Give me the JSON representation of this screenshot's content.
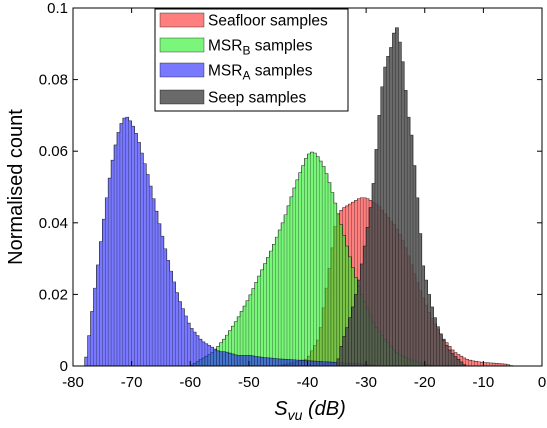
{
  "chart_data": {
    "type": "histogram",
    "xlabel": {
      "main": "S",
      "sub": "vu",
      "units": " (dB)"
    },
    "ylabel": "Normalised count",
    "xlim": [
      -80,
      0
    ],
    "ylim": [
      0,
      0.1
    ],
    "xticks": [
      "-80",
      "-70",
      "-60",
      "-50",
      "-40",
      "-30",
      "-20",
      "-10",
      "0"
    ],
    "yticks": [
      "0",
      "0.02",
      "0.04",
      "0.06",
      "0.08",
      "0.1"
    ],
    "grid": false,
    "legend_position": "top-center",
    "bin_width_db": 0.5,
    "series": [
      {
        "name": "Seafloor samples",
        "name_parts": [
          {
            "t": "Seafloor samples"
          }
        ],
        "color": "#ff2a2a",
        "fill_opacity": 0.6,
        "points": [
          [
            -45,
            0.0
          ],
          [
            -40,
            0.002
          ],
          [
            -38,
            0.008
          ],
          [
            -36,
            0.03
          ],
          [
            -35,
            0.042
          ],
          [
            -34,
            0.044
          ],
          [
            -33,
            0.045
          ],
          [
            -32,
            0.046
          ],
          [
            -31,
            0.047
          ],
          [
            -30,
            0.047
          ],
          [
            -29,
            0.046
          ],
          [
            -28,
            0.045
          ],
          [
            -27,
            0.043
          ],
          [
            -26,
            0.041
          ],
          [
            -25,
            0.039
          ],
          [
            -24,
            0.036
          ],
          [
            -23,
            0.032
          ],
          [
            -22,
            0.027
          ],
          [
            -21,
            0.022
          ],
          [
            -20,
            0.018
          ],
          [
            -19,
            0.014
          ],
          [
            -18,
            0.011
          ],
          [
            -17,
            0.008
          ],
          [
            -16,
            0.006
          ],
          [
            -15,
            0.004
          ],
          [
            -14,
            0.003
          ],
          [
            -13,
            0.002
          ],
          [
            -12,
            0.0015
          ],
          [
            -10,
            0.001
          ],
          [
            -8,
            0.0008
          ],
          [
            -6,
            0.0005
          ],
          [
            -5,
            0.0
          ]
        ]
      },
      {
        "name": "MSR_B samples",
        "name_parts": [
          {
            "t": "MSR"
          },
          {
            "t": "B",
            "sub": true
          },
          {
            "t": " samples"
          }
        ],
        "color": "#22f022",
        "fill_opacity": 0.6,
        "points": [
          [
            -60,
            0.0
          ],
          [
            -58,
            0.002
          ],
          [
            -56,
            0.004
          ],
          [
            -54,
            0.008
          ],
          [
            -52,
            0.013
          ],
          [
            -50,
            0.019
          ],
          [
            -48,
            0.026
          ],
          [
            -46,
            0.033
          ],
          [
            -44,
            0.041
          ],
          [
            -43,
            0.046
          ],
          [
            -42,
            0.051
          ],
          [
            -41,
            0.055
          ],
          [
            -40,
            0.059
          ],
          [
            -39,
            0.06
          ],
          [
            -38,
            0.058
          ],
          [
            -37,
            0.055
          ],
          [
            -36,
            0.05
          ],
          [
            -35,
            0.044
          ],
          [
            -34,
            0.038
          ],
          [
            -33,
            0.032
          ],
          [
            -32,
            0.026
          ],
          [
            -31,
            0.021
          ],
          [
            -30,
            0.017
          ],
          [
            -29,
            0.013
          ],
          [
            -28,
            0.01
          ],
          [
            -27,
            0.008
          ],
          [
            -26,
            0.006
          ],
          [
            -25,
            0.004
          ],
          [
            -24,
            0.003
          ],
          [
            -22,
            0.0015
          ],
          [
            -20,
            0.0005
          ],
          [
            -18,
            0.0
          ]
        ]
      },
      {
        "name": "MSR_A samples",
        "name_parts": [
          {
            "t": "MSR"
          },
          {
            "t": "A",
            "sub": true
          },
          {
            "t": " samples"
          }
        ],
        "color": "#2020ff",
        "fill_opacity": 0.6,
        "points": [
          [
            -78,
            0.0
          ],
          [
            -77.5,
            0.005
          ],
          [
            -77,
            0.012
          ],
          [
            -76,
            0.025
          ],
          [
            -75,
            0.038
          ],
          [
            -74,
            0.05
          ],
          [
            -73,
            0.06
          ],
          [
            -72,
            0.067
          ],
          [
            -71,
            0.07
          ],
          [
            -70,
            0.068
          ],
          [
            -69,
            0.064
          ],
          [
            -68,
            0.058
          ],
          [
            -67,
            0.052
          ],
          [
            -66,
            0.045
          ],
          [
            -65,
            0.038
          ],
          [
            -64,
            0.031
          ],
          [
            -63,
            0.025
          ],
          [
            -62,
            0.019
          ],
          [
            -61,
            0.015
          ],
          [
            -60,
            0.011
          ],
          [
            -59,
            0.009
          ],
          [
            -58,
            0.007
          ],
          [
            -57,
            0.006
          ],
          [
            -56,
            0.005
          ],
          [
            -55,
            0.004
          ],
          [
            -54,
            0.004
          ],
          [
            -52,
            0.003
          ],
          [
            -50,
            0.003
          ],
          [
            -48,
            0.0025
          ],
          [
            -45,
            0.002
          ],
          [
            -40,
            0.0015
          ],
          [
            -35,
            0.001
          ],
          [
            -30,
            0.0005
          ],
          [
            -28,
            0.0
          ]
        ]
      },
      {
        "name": "Seep samples",
        "name_parts": [
          {
            "t": "Seep samples"
          }
        ],
        "color": "#505050",
        "fill_opacity": 0.85,
        "points": [
          [
            -38,
            0.0
          ],
          [
            -35,
            0.0
          ],
          [
            -34.5,
            0.004
          ],
          [
            -34,
            0.007
          ],
          [
            -33,
            0.012
          ],
          [
            -32,
            0.018
          ],
          [
            -31,
            0.026
          ],
          [
            -30,
            0.036
          ],
          [
            -29,
            0.047
          ],
          [
            -28.5,
            0.055
          ],
          [
            -28,
            0.066
          ],
          [
            -27.5,
            0.074
          ],
          [
            -27,
            0.082
          ],
          [
            -26.5,
            0.085
          ],
          [
            -26,
            0.088
          ],
          [
            -25.5,
            0.09
          ],
          [
            -25,
            0.096
          ],
          [
            -24.5,
            0.093
          ],
          [
            -24,
            0.088
          ],
          [
            -23.5,
            0.082
          ],
          [
            -23,
            0.072
          ],
          [
            -22,
            0.062
          ],
          [
            -21.5,
            0.05
          ],
          [
            -21,
            0.044
          ],
          [
            -20.5,
            0.03
          ],
          [
            -20,
            0.026
          ],
          [
            -19,
            0.018
          ],
          [
            -18,
            0.012
          ],
          [
            -17,
            0.008
          ],
          [
            -16,
            0.005
          ],
          [
            -15,
            0.003
          ],
          [
            -14,
            0.0015
          ],
          [
            -13,
            0.0
          ]
        ]
      }
    ]
  }
}
